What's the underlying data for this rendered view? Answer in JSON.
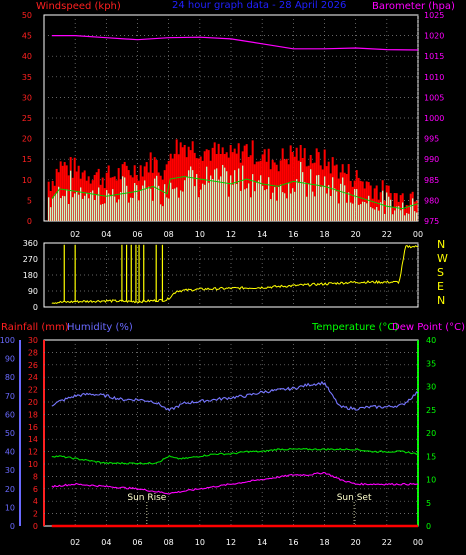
{
  "header": {
    "left_label": "Windspeed (kph)",
    "center_label": "24 hour graph data - 28 April 2026",
    "right_label": "Barometer (hpa)"
  },
  "bottom_header": {
    "rainfall_label": "Rainfall (mm)",
    "humidity_label": "Humidity (%)",
    "temperature_label": "Temperature (°C)",
    "dewpoint_label": "Dew Point (°C)"
  },
  "annotations": {
    "sunrise": "Sun Rise",
    "sunset": "Sun Set"
  },
  "compass": [
    "N",
    "W",
    "S",
    "E",
    "N"
  ],
  "colors": {
    "background": "#000000",
    "axis_red": "#ff2020",
    "axis_magenta": "#ff00ff",
    "axis_green": "#00ff00",
    "axis_blue": "#6a6aff",
    "axis_white": "#ffffff",
    "title_blue": "#2020ff",
    "wind_gust": "#ff0000",
    "wind_avg": "#ccffcc",
    "wind_line": "#00cc00",
    "barometer": "#ff00ff",
    "direction": "#ffff00",
    "humidity": "#7777ff",
    "temperature": "#00dd00",
    "dewpoint": "#ff00ff",
    "rainfall": "#ff0000",
    "grid": "#888888"
  },
  "chart_data": [
    {
      "type": "area",
      "title": "24 hour graph data - 28 April 2026",
      "x_ticks": [
        "02",
        "04",
        "06",
        "08",
        "10",
        "12",
        "14",
        "16",
        "18",
        "20",
        "22",
        "00"
      ],
      "xlim": [
        0,
        24
      ],
      "left_axis": {
        "label": "Windspeed (kph)",
        "ticks": [
          0,
          5,
          10,
          15,
          20,
          25,
          30,
          35,
          40,
          45,
          50
        ],
        "ylim": [
          0,
          50
        ]
      },
      "right_axis": {
        "label": "Barometer (hpa)",
        "ticks": [
          975,
          980,
          985,
          990,
          995,
          1000,
          1005,
          1010,
          1015,
          1020,
          1025
        ],
        "ylim": [
          975,
          1025
        ]
      },
      "series": [
        {
          "name": "Windspeed (kph)",
          "axis": "left",
          "x": [
            0.5,
            1,
            2,
            3,
            4,
            5,
            6,
            7,
            7.9,
            8.1,
            9,
            10,
            11,
            12,
            13,
            14,
            15,
            16,
            17,
            18,
            19,
            20,
            21,
            22,
            23,
            24
          ],
          "values": [
            9,
            13,
            12,
            11,
            10,
            11,
            12,
            14,
            11,
            17,
            18,
            17,
            16,
            15,
            17,
            15,
            14,
            16,
            15,
            14,
            12,
            10,
            8,
            6,
            5,
            7
          ]
        },
        {
          "name": "Barometer (hpa)",
          "axis": "right",
          "x": [
            0.5,
            2,
            4,
            6,
            8,
            10,
            12,
            14,
            16,
            18,
            20,
            22,
            24
          ],
          "values": [
            1020,
            1020,
            1019.5,
            1019,
            1019.5,
            1019.6,
            1019.2,
            1018,
            1016.8,
            1016.8,
            1017,
            1016.6,
            1016.5
          ]
        }
      ],
      "grid": true
    },
    {
      "type": "scatter",
      "x_ticks": [
        "02",
        "04",
        "06",
        "08",
        "10",
        "12",
        "14",
        "16",
        "18",
        "20",
        "22",
        "00"
      ],
      "xlim": [
        0,
        24
      ],
      "left_axis": {
        "ticks": [
          0,
          90,
          180,
          270,
          360
        ],
        "ylim": [
          0,
          360
        ]
      },
      "series": [
        {
          "name": "Wind direction",
          "x": [
            0.5,
            2,
            4,
            6,
            7.9,
            8.5,
            10,
            12,
            14,
            16,
            18,
            19,
            20,
            21,
            22,
            22.8,
            23.2,
            24
          ],
          "values": [
            25,
            30,
            35,
            30,
            40,
            90,
            100,
            105,
            110,
            120,
            130,
            135,
            140,
            140,
            140,
            140,
            340,
            340
          ]
        }
      ],
      "grid": true
    },
    {
      "type": "line",
      "x_ticks": [
        "02",
        "04",
        "06",
        "08",
        "10",
        "12",
        "14",
        "16",
        "18",
        "20",
        "22",
        "00"
      ],
      "xlim": [
        0,
        24
      ],
      "axes": {
        "humidity": {
          "label": "Humidity (%)",
          "ticks": [
            0,
            10,
            20,
            30,
            40,
            50,
            60,
            70,
            80,
            90,
            100
          ],
          "ylim": [
            0,
            100
          ]
        },
        "rainfall": {
          "label": "Rainfall (mm)",
          "ticks": [
            0,
            2,
            4,
            6,
            8,
            10,
            12,
            14,
            16,
            18,
            20,
            22,
            24,
            26,
            28,
            30
          ],
          "ylim": [
            0,
            30
          ]
        },
        "temperature": {
          "label": "Temperature (°C)",
          "ticks": [
            0,
            5,
            10,
            15,
            20,
            25,
            30,
            35,
            40
          ],
          "ylim": [
            0,
            40
          ]
        }
      },
      "series": [
        {
          "name": "Humidity (%)",
          "axis": "humidity",
          "x": [
            0.5,
            1,
            2,
            3,
            4,
            5,
            6,
            7,
            7.5,
            8,
            8.5,
            9,
            10,
            11,
            12,
            13,
            14,
            15,
            16,
            17,
            18,
            18.5,
            19,
            20,
            21,
            22,
            23,
            24
          ],
          "values": [
            65,
            67,
            70,
            71,
            70,
            68,
            68,
            67,
            65,
            62,
            64,
            66,
            67,
            68,
            69,
            70,
            72,
            73,
            74,
            76,
            77,
            70,
            64,
            63,
            64,
            64,
            65,
            72
          ]
        },
        {
          "name": "Temperature (°C)",
          "axis": "temperature",
          "x": [
            0.5,
            1,
            2,
            3,
            4,
            5,
            6,
            7,
            7.5,
            8,
            8.5,
            9,
            10,
            11,
            12,
            13,
            14,
            15,
            16,
            17,
            18,
            19,
            20,
            21,
            22,
            23,
            24
          ],
          "values": [
            15,
            15,
            14.5,
            14,
            13.5,
            13.5,
            13.5,
            13.5,
            14,
            15,
            14.5,
            14.5,
            15,
            15.5,
            15.5,
            16,
            16,
            16.5,
            16.5,
            16.5,
            16.5,
            16.5,
            16.5,
            16,
            16,
            16,
            15.5
          ]
        },
        {
          "name": "Dew Point (°C)",
          "axis": "temperature",
          "x": [
            0.5,
            2,
            4,
            6,
            7,
            8,
            9,
            10,
            11,
            12,
            13,
            14,
            15,
            16,
            17,
            18,
            19,
            20,
            21,
            22,
            23,
            24
          ],
          "values": [
            8.5,
            9,
            8.5,
            8,
            7.5,
            7,
            7.5,
            8,
            8.5,
            9,
            9.5,
            10,
            10.5,
            11,
            11,
            11.5,
            10,
            9,
            9,
            9,
            9,
            9
          ]
        },
        {
          "name": "Rainfall (mm)",
          "axis": "rainfall",
          "x": [
            0.5,
            24
          ],
          "values": [
            0,
            0
          ]
        }
      ],
      "markers": [
        {
          "label": "Sun Rise",
          "x": 6.6
        },
        {
          "label": "Sun Set",
          "x": 19.9
        }
      ],
      "grid": true
    }
  ]
}
